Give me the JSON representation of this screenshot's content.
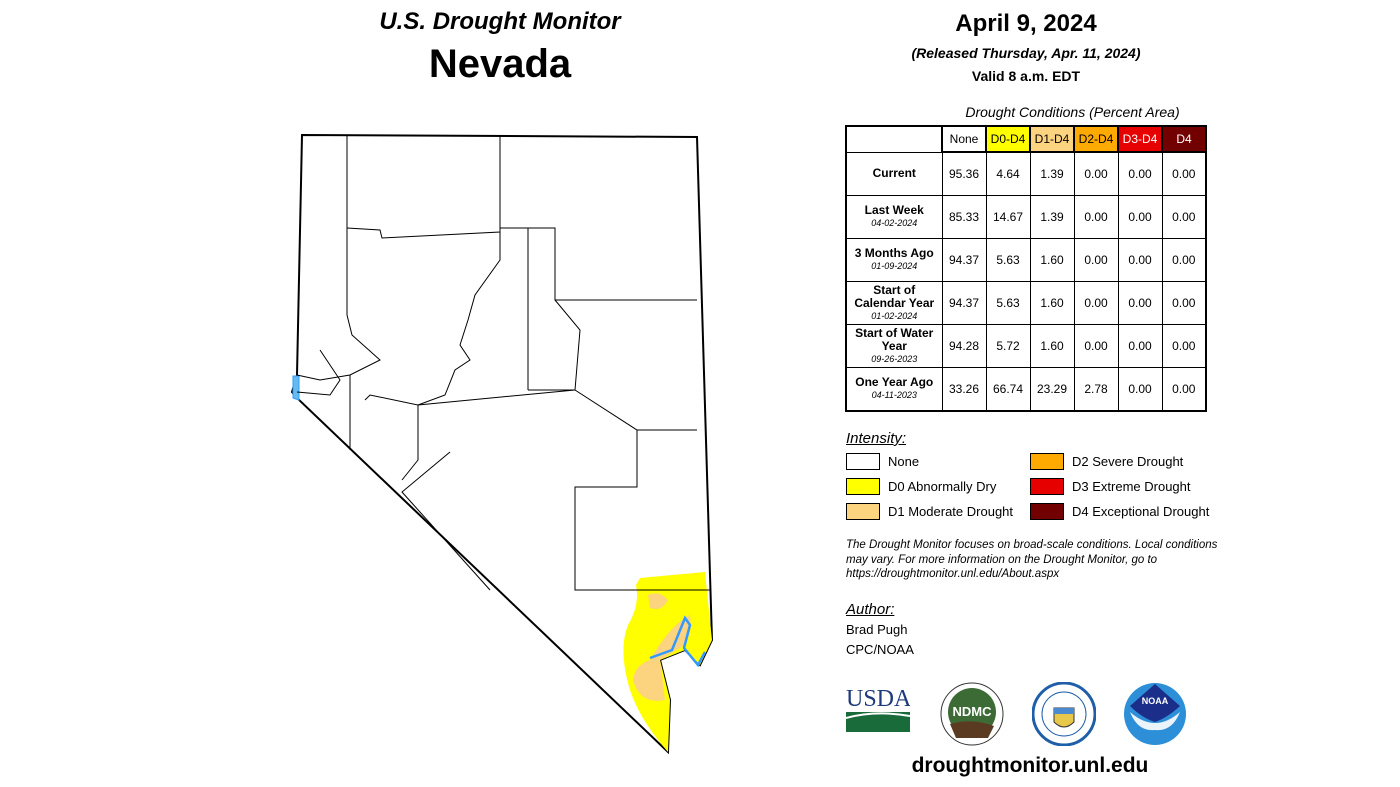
{
  "header": {
    "title": "U.S. Drought Monitor",
    "state": "Nevada",
    "date": "April 9, 2024",
    "released": "(Released Thursday, Apr. 11, 2024)",
    "valid": "Valid 8 a.m. EDT"
  },
  "table": {
    "caption": "Drought Conditions (Percent Area)",
    "columns": [
      {
        "label": "None",
        "color": "#ffffff",
        "text": "#000000"
      },
      {
        "label": "D0-D4",
        "color": "#ffff00",
        "text": "#000000"
      },
      {
        "label": "D1-D4",
        "color": "#fcd37f",
        "text": "#000000"
      },
      {
        "label": "D2-D4",
        "color": "#ffaa00",
        "text": "#000000"
      },
      {
        "label": "D3-D4",
        "color": "#e60000",
        "text": "#ffffff"
      },
      {
        "label": "D4",
        "color": "#730000",
        "text": "#ffffff"
      }
    ],
    "rows": [
      {
        "label": "Current",
        "date": "",
        "values": [
          "95.36",
          "4.64",
          "1.39",
          "0.00",
          "0.00",
          "0.00"
        ]
      },
      {
        "label": "Last Week",
        "date": "04-02-2024",
        "values": [
          "85.33",
          "14.67",
          "1.39",
          "0.00",
          "0.00",
          "0.00"
        ]
      },
      {
        "label": "3 Months Ago",
        "date": "01-09-2024",
        "values": [
          "94.37",
          "5.63",
          "1.60",
          "0.00",
          "0.00",
          "0.00"
        ]
      },
      {
        "label": "Start of Calendar Year",
        "date": "01-02-2024",
        "values": [
          "94.37",
          "5.63",
          "1.60",
          "0.00",
          "0.00",
          "0.00"
        ]
      },
      {
        "label": "Start of Water Year",
        "date": "09-26-2023",
        "values": [
          "94.28",
          "5.72",
          "1.60",
          "0.00",
          "0.00",
          "0.00"
        ]
      },
      {
        "label": "One Year Ago",
        "date": "04-11-2023",
        "values": [
          "33.26",
          "66.74",
          "23.29",
          "2.78",
          "0.00",
          "0.00"
        ]
      }
    ]
  },
  "legend": {
    "title": "Intensity:",
    "items": [
      {
        "label": "None",
        "color": "#ffffff"
      },
      {
        "label": "D0 Abnormally Dry",
        "color": "#ffff00"
      },
      {
        "label": "D1 Moderate Drought",
        "color": "#fcd37f"
      },
      {
        "label": "D2 Severe Drought",
        "color": "#ffaa00"
      },
      {
        "label": "D3 Extreme Drought",
        "color": "#e60000"
      },
      {
        "label": "D4 Exceptional Drought",
        "color": "#730000"
      }
    ]
  },
  "note": "The Drought Monitor focuses on broad-scale conditions. Local conditions may vary. For more information on the Drought Monitor, go to https://droughtmonitor.unl.edu/About.aspx",
  "author": {
    "title": "Author:",
    "name": "Brad Pugh",
    "org": "CPC/NOAA"
  },
  "logos": {
    "usda": "USDA",
    "ndmc": "NDMC",
    "doc": "Department of Commerce",
    "noaa": "NOAA"
  },
  "site": "droughtmonitor.unl.edu"
}
